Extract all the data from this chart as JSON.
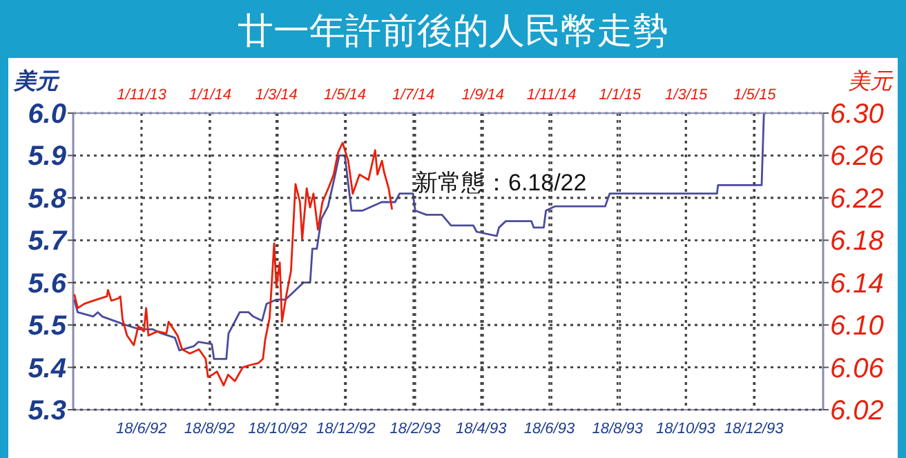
{
  "chart_data": [
    {
      "type": "line",
      "title": "廿一年許前後的人民幣走勢",
      "ylabel": "美元",
      "annotations": [
        "新常態：6.18/22"
      ],
      "xlim": [
        "1992-04-18",
        "1994-02-18"
      ],
      "xticks": [
        {
          "value": "1992-06-18",
          "label": "18/6/92"
        },
        {
          "value": "1992-08-18",
          "label": "18/8/92"
        },
        {
          "value": "1992-10-18",
          "label": "18/10/92"
        },
        {
          "value": "1992-12-18",
          "label": "18/12/92"
        },
        {
          "value": "1993-02-18",
          "label": "18/2/93"
        },
        {
          "value": "1993-04-18",
          "label": "18/4/93"
        },
        {
          "value": "1993-06-18",
          "label": "18/6/93"
        },
        {
          "value": "1993-08-18",
          "label": "18/8/93"
        },
        {
          "value": "1993-10-18",
          "label": "18/10/93"
        },
        {
          "value": "1993-12-18",
          "label": "18/12/93"
        }
      ],
      "ylim": [
        5.3,
        6.0
      ],
      "yticks": [
        {
          "value": 5.3,
          "label": "5.3"
        },
        {
          "value": 5.4,
          "label": "5.4"
        },
        {
          "value": 5.5,
          "label": "5.5"
        },
        {
          "value": 5.6,
          "label": "5.6"
        },
        {
          "value": 5.7,
          "label": "5.7"
        },
        {
          "value": 5.8,
          "label": "5.8"
        },
        {
          "value": 5.9,
          "label": "5.9"
        },
        {
          "value": 6.0,
          "label": "6.0"
        }
      ],
      "grid": true,
      "line_style": "solid",
      "marker": "none",
      "series": [
        {
          "color": "#4b4b9e",
          "x": [
            "1992-04-19",
            "1992-04-22",
            "1992-05-06",
            "1992-05-10",
            "1992-05-14",
            "1992-06-04",
            "1992-06-16",
            "1992-06-28",
            "1992-07-06",
            "1992-07-18",
            "1992-07-22",
            "1992-08-04",
            "1992-08-08",
            "1992-08-20",
            "1992-08-22",
            "1992-09-02",
            "1992-09-04",
            "1992-09-10",
            "1992-09-14",
            "1992-09-22",
            "1992-09-26",
            "1992-10-04",
            "1992-10-08",
            "1992-10-17",
            "1992-10-25",
            "1992-11-02",
            "1992-11-10",
            "1992-11-16",
            "1992-11-18",
            "1992-11-22",
            "1992-11-26",
            "1992-12-02",
            "1992-12-08",
            "1992-12-12",
            "1992-12-17",
            "1992-12-23",
            "1993-01-02",
            "1993-01-19",
            "1993-01-31",
            "1993-02-04",
            "1993-02-16",
            "1993-02-18",
            "1993-02-28",
            "1993-03-14",
            "1993-03-22",
            "1993-04-11",
            "1993-04-14",
            "1993-05-02",
            "1993-05-04",
            "1993-05-10",
            "1993-06-02",
            "1993-06-04",
            "1993-06-13",
            "1993-06-15",
            "1993-06-23",
            "1993-08-07",
            "1993-08-11",
            "1993-08-29",
            "1993-11-15",
            "1993-11-16",
            "1993-12-25",
            "1993-12-27"
          ],
          "values": [
            5.56,
            5.53,
            5.52,
            5.53,
            5.52,
            5.5,
            5.49,
            5.49,
            5.48,
            5.47,
            5.44,
            5.45,
            5.46,
            5.455,
            5.42,
            5.42,
            5.48,
            5.51,
            5.53,
            5.53,
            5.52,
            5.51,
            5.55,
            5.56,
            5.56,
            5.58,
            5.6,
            5.6,
            5.68,
            5.68,
            5.75,
            5.78,
            5.85,
            5.9,
            5.9,
            5.77,
            5.77,
            5.79,
            5.79,
            5.81,
            5.81,
            5.77,
            5.76,
            5.76,
            5.735,
            5.735,
            5.72,
            5.71,
            5.73,
            5.745,
            5.745,
            5.73,
            5.73,
            5.77,
            5.78,
            5.78,
            5.81,
            5.81,
            5.81,
            5.83,
            5.83,
            6.0
          ]
        }
      ]
    },
    {
      "type": "line",
      "ylabel": "美元",
      "xlim": [
        "2013-09-01",
        "2015-07-01"
      ],
      "xticks": [
        {
          "value": "2013-11-01",
          "label": "1/11/13"
        },
        {
          "value": "2014-01-01",
          "label": "1/1/14"
        },
        {
          "value": "2014-03-01",
          "label": "1/3/14"
        },
        {
          "value": "2014-05-01",
          "label": "1/5/14"
        },
        {
          "value": "2014-07-01",
          "label": "1/7/14"
        },
        {
          "value": "2014-09-01",
          "label": "1/9/14"
        },
        {
          "value": "2014-11-01",
          "label": "1/11/14"
        },
        {
          "value": "2015-01-01",
          "label": "1/1/15"
        },
        {
          "value": "2015-03-01",
          "label": "1/3/15"
        },
        {
          "value": "2015-05-01",
          "label": "1/5/15"
        }
      ],
      "ylim": [
        6.02,
        6.3
      ],
      "yticks": [
        {
          "value": 6.02,
          "label": "6.02"
        },
        {
          "value": 6.06,
          "label": "6.06"
        },
        {
          "value": 6.1,
          "label": "6.10"
        },
        {
          "value": 6.14,
          "label": "6.14"
        },
        {
          "value": 6.18,
          "label": "6.18"
        },
        {
          "value": 6.22,
          "label": "6.22"
        },
        {
          "value": 6.26,
          "label": "6.26"
        },
        {
          "value": 6.3,
          "label": "6.30"
        }
      ],
      "grid": true,
      "line_style": "solid",
      "marker": "none",
      "series": [
        {
          "color": "#e8200c",
          "x": [
            "2013-09-02",
            "2013-09-05",
            "2013-09-11",
            "2013-09-19",
            "2013-10-01",
            "2013-10-02",
            "2013-10-05",
            "2013-10-11",
            "2013-10-13",
            "2013-10-15",
            "2013-10-19",
            "2013-10-25",
            "2013-10-29",
            "2013-11-03",
            "2013-11-05",
            "2013-11-07",
            "2013-11-15",
            "2013-11-23",
            "2013-11-25",
            "2013-12-03",
            "2013-12-07",
            "2013-12-14",
            "2013-12-22",
            "2013-12-28",
            "2013-12-30",
            "2014-01-03",
            "2014-01-07",
            "2014-01-13",
            "2014-01-17",
            "2014-01-23",
            "2014-01-30",
            "2014-02-05",
            "2014-02-13",
            "2014-02-17",
            "2014-02-19",
            "2014-02-23",
            "2014-02-27",
            "2014-03-01",
            "2014-03-04",
            "2014-03-06",
            "2014-03-10",
            "2014-03-14",
            "2014-03-18",
            "2014-03-22",
            "2014-03-24",
            "2014-03-28",
            "2014-03-31",
            "2014-04-03",
            "2014-04-07",
            "2014-04-11",
            "2014-04-17",
            "2014-04-21",
            "2014-04-25",
            "2014-04-29",
            "2014-05-04",
            "2014-05-08",
            "2014-05-14",
            "2014-05-22",
            "2014-05-28",
            "2014-05-30",
            "2014-06-03",
            "2014-06-05",
            "2014-06-09",
            "2014-06-12"
          ],
          "values": [
            6.129,
            6.116,
            6.12,
            6.123,
            6.127,
            6.133,
            6.123,
            6.125,
            6.127,
            6.105,
            6.09,
            6.081,
            6.099,
            6.094,
            6.116,
            6.09,
            6.094,
            6.092,
            6.103,
            6.09,
            6.077,
            6.073,
            6.077,
            6.068,
            6.051,
            6.053,
            6.056,
            6.043,
            6.053,
            6.047,
            6.06,
            6.062,
            6.064,
            6.068,
            6.086,
            6.107,
            6.177,
            6.136,
            6.159,
            6.103,
            6.129,
            6.151,
            6.233,
            6.216,
            6.181,
            6.229,
            6.211,
            6.224,
            6.19,
            6.216,
            6.231,
            6.242,
            6.263,
            6.272,
            6.255,
            6.224,
            6.242,
            6.237,
            6.265,
            6.242,
            6.255,
            6.244,
            6.229,
            6.209
          ]
        }
      ]
    }
  ]
}
